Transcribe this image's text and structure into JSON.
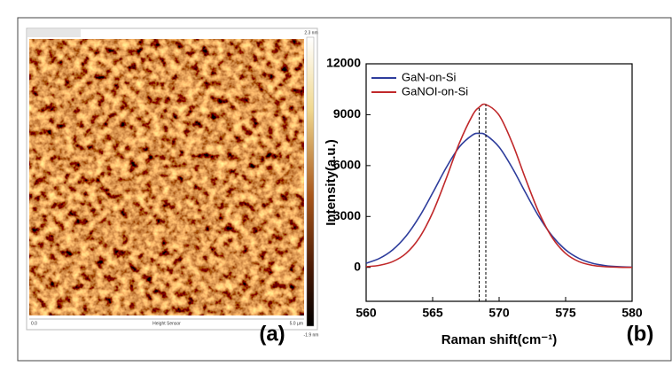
{
  "afm": {
    "scale_max": "2.3 nm",
    "scale_min": "-1.9 nm",
    "x_start": "0.0",
    "channel": "Height Sensor",
    "x_end": "5.0 µm",
    "panel_label": "(a)"
  },
  "chart_data": {
    "type": "line",
    "panel_label": "(b)",
    "x_label": "Raman shift(cm⁻¹)",
    "y_label": "Intensity(a.u.)",
    "x": [
      560,
      561,
      562,
      563,
      564,
      565,
      566,
      567,
      568,
      568.5,
      569,
      570,
      571,
      572,
      573,
      574,
      575,
      576,
      577,
      578,
      579,
      580
    ],
    "series": [
      {
        "name": "GaN-on-Si",
        "color": "#2e3d9c",
        "values": [
          245,
          529,
          1037,
          1846,
          2984,
          4384,
          5849,
          7090,
          7805,
          7900,
          7805,
          7090,
          5849,
          4384,
          2984,
          1846,
          1037,
          529,
          245,
          103,
          39,
          14
        ]
      },
      {
        "name": "GaNOI-on-Si",
        "color": "#c0282a",
        "values": [
          38,
          122,
          340,
          824,
          1745,
          3224,
          5196,
          7308,
          8967,
          9438,
          9600,
          8967,
          7308,
          5196,
          3224,
          1745,
          824,
          340,
          122,
          38,
          10,
          3
        ]
      }
    ],
    "xlim": [
      560,
      580
    ],
    "ylim": [
      -2000,
      12000
    ],
    "xticks": [
      560,
      565,
      570,
      575,
      580
    ],
    "yticks": [
      0,
      3000,
      6000,
      9000,
      12000
    ],
    "vlines": [
      568.5,
      569
    ],
    "legend": "upper left"
  }
}
